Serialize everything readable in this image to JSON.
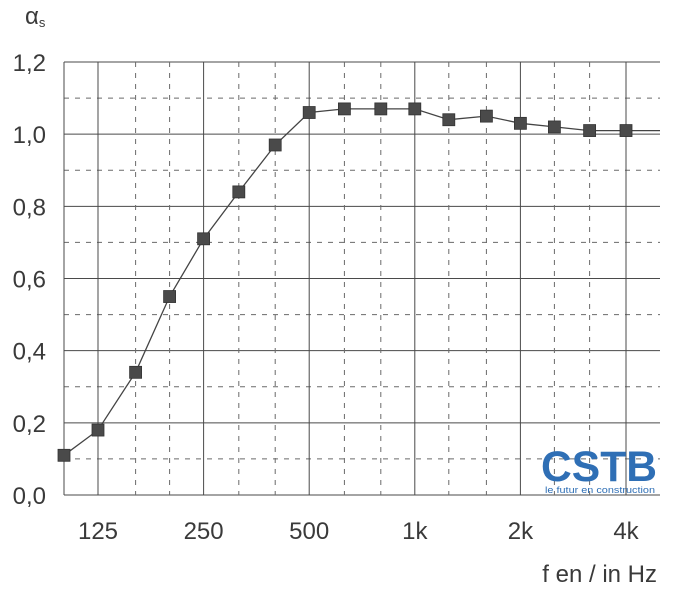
{
  "chart_data": {
    "type": "line",
    "ylabel": "α",
    "ylabel_sub": "s",
    "xlabel": "f en / in Hz",
    "y_ticks": [
      "0,0",
      "0,2",
      "0,4",
      "0,6",
      "0,8",
      "1,0",
      "1,2"
    ],
    "ylim": [
      0,
      1.2
    ],
    "x_ticks": [
      {
        "label": "125",
        "x": 125
      },
      {
        "label": "250",
        "x": 250
      },
      {
        "label": "500",
        "x": 500
      },
      {
        "label": "1k",
        "x": 1000
      },
      {
        "label": "2k",
        "x": 2000
      },
      {
        "label": "4k",
        "x": 4000
      }
    ],
    "x_scale": "log",
    "xlim": [
      100,
      5000
    ],
    "grid": true,
    "series": [
      {
        "x": [
          100,
          125,
          160,
          200,
          250,
          315,
          400,
          500,
          630,
          800,
          1000,
          1250,
          1600,
          2000,
          2500,
          3150,
          4000,
          5000
        ],
        "values": [
          0.11,
          0.18,
          0.34,
          0.55,
          0.71,
          0.84,
          0.97,
          1.06,
          1.07,
          1.07,
          1.07,
          1.04,
          1.05,
          1.03,
          1.02,
          1.01,
          1.01,
          1.01
        ]
      }
    ]
  },
  "logo": {
    "text": "CSTB",
    "tagline": "le futur en construction",
    "color": "#2f6fb5"
  }
}
